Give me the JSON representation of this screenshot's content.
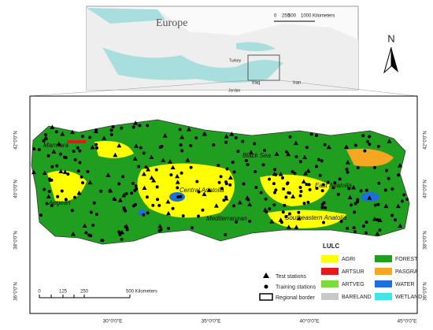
{
  "inset": {
    "title": "Europe",
    "scale_labels": [
      "0",
      "250",
      "500",
      "1000 Kilometers"
    ],
    "countries": [
      "Turkey",
      "Iraq",
      "Iran",
      "Jordan"
    ]
  },
  "north": "N",
  "lat_labels": [
    "42°0'0\"N",
    "40°0'0\"N",
    "38°0'0\"N",
    "36°0'0\"N"
  ],
  "lon_labels": [
    "30°0'0\"E",
    "35°0'0\"E",
    "40°0'0\"E",
    "45°0'0\"E"
  ],
  "regions": [
    "Marmara",
    "Black Sea",
    "Central Anatolia",
    "East Anatolia",
    "Aegean",
    "Mediterranean",
    "Southeastern Anatolia"
  ],
  "stations_legend": [
    "Test stations",
    "Training stations",
    "Regional border"
  ],
  "lulc": {
    "title": "LULC",
    "classes": [
      {
        "name": "AGRI",
        "color": "#ffff00"
      },
      {
        "name": "ARTSUR",
        "color": "#e31a1c"
      },
      {
        "name": "ARTVEG",
        "color": "#7ddb3c"
      },
      {
        "name": "BARELAND",
        "color": "#c8c8c8"
      },
      {
        "name": "FOREST",
        "color": "#1f9e1f"
      },
      {
        "name": "PASGRA",
        "color": "#f5a623"
      },
      {
        "name": "WATER",
        "color": "#1e6fd9"
      },
      {
        "name": "WETLAND",
        "color": "#3ee6e6"
      }
    ]
  },
  "scale_labels": [
    "0",
    "125",
    "250",
    "500 Kilometers"
  ]
}
